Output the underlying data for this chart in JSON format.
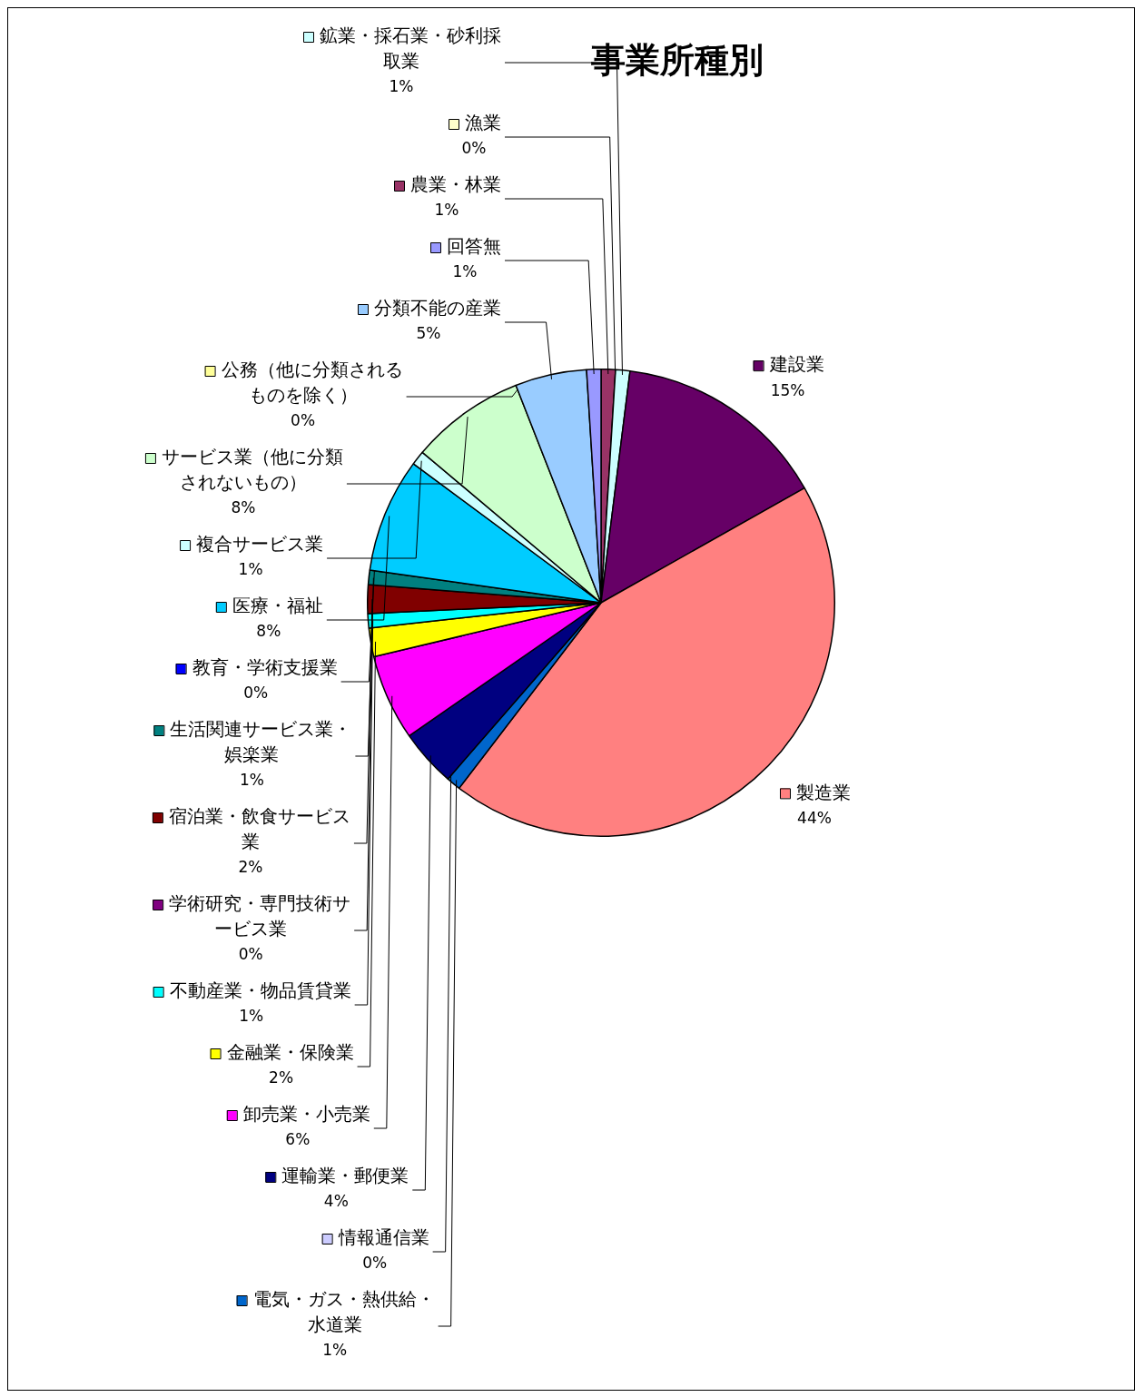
{
  "chart_data": {
    "type": "pie",
    "title": "事業所種別",
    "categories": [
      "農業・林業",
      "漁業",
      "鉱業・採石業・砂利採取業",
      "建設業",
      "製造業",
      "電気・ガス・熱供給・水道業",
      "情報通信業",
      "運輸業・郵便業",
      "卸売業・小売業",
      "金融業・保険業",
      "不動産業・物品賃貸業",
      "学術研究・専門技術サービス業",
      "宿泊業・飲食サービス業",
      "生活関連サービス業・娯楽業",
      "教育・学術支援業",
      "医療・福祉",
      "複合サービス業",
      "サービス業（他に分類されないもの）",
      "公務（他に分類されるものを除く）",
      "分類不能の産業",
      "回答無"
    ],
    "values": [
      1,
      0,
      1,
      15,
      44,
      1,
      0,
      4,
      6,
      2,
      1,
      0,
      2,
      1,
      0,
      8,
      1,
      8,
      0,
      5,
      1
    ],
    "value_labels": [
      "1%",
      "0%",
      "1%",
      "15%",
      "44%",
      "1%",
      "0%",
      "4%",
      "6%",
      "2%",
      "1%",
      "0%",
      "2%",
      "1%",
      "0%",
      "8%",
      "1%",
      "8%",
      "0%",
      "5%",
      "1%"
    ],
    "colors": [
      "#993366",
      "#ffffcc",
      "#ccffff",
      "#660066",
      "#ff8080",
      "#0066cc",
      "#ccccff",
      "#000080",
      "#ff00ff",
      "#ffff00",
      "#00ffff",
      "#800080",
      "#800000",
      "#008080",
      "#0000ff",
      "#00ccff",
      "#ccffff",
      "#ccffcc",
      "#ffff99",
      "#99ccff",
      "#9999ff"
    ],
    "legend": "left"
  }
}
